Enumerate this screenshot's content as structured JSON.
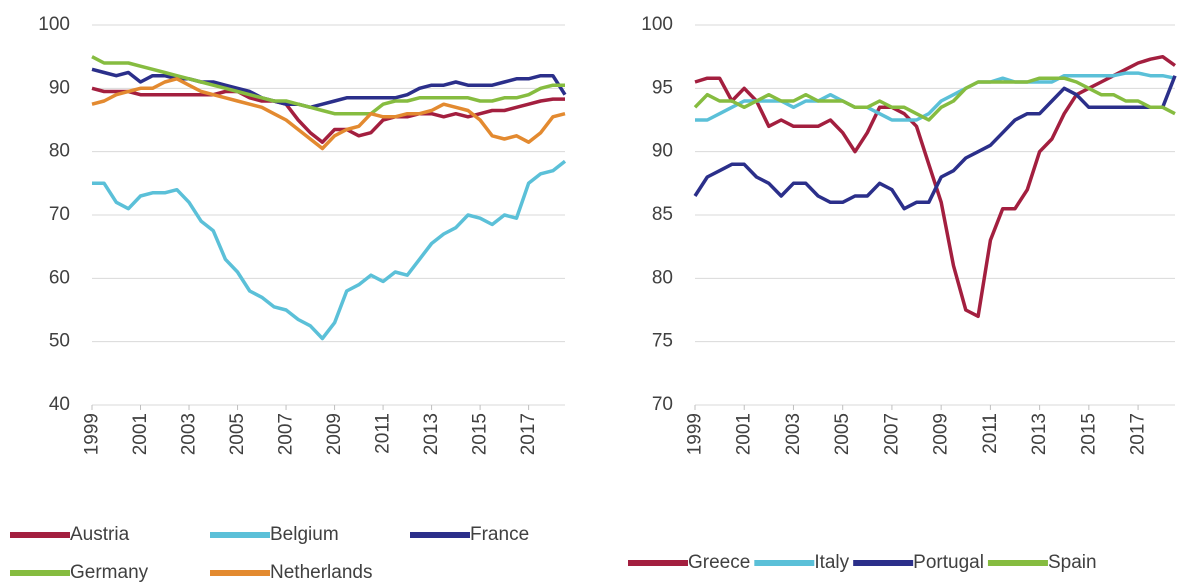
{
  "chart_data": [
    {
      "type": "line",
      "x": [
        1999,
        1999.5,
        2000,
        2000.5,
        2001,
        2001.5,
        2002,
        2002.5,
        2003,
        2003.5,
        2004,
        2004.5,
        2005,
        2005.5,
        2006,
        2006.5,
        2007,
        2007.5,
        2008,
        2008.5,
        2009,
        2009.5,
        2010,
        2010.5,
        2011,
        2011.5,
        2012,
        2012.5,
        2013,
        2013.5,
        2014,
        2014.5,
        2015,
        2015.5,
        2016,
        2016.5,
        2017,
        2017.5,
        2018,
        2018.5
      ],
      "xlim": [
        1999,
        2018.5
      ],
      "xticks": [
        1999,
        2001,
        2003,
        2005,
        2007,
        2009,
        2011,
        2013,
        2015,
        2017
      ],
      "ylim": [
        40,
        100
      ],
      "yticks": [
        40,
        50,
        60,
        70,
        80,
        90,
        100
      ],
      "grid": true,
      "series": [
        {
          "name": "Austria",
          "color": "#a31f3f",
          "values": [
            90,
            89.5,
            89.5,
            89.5,
            89,
            89,
            89,
            89,
            89,
            89,
            89,
            89.5,
            89.5,
            88.5,
            88,
            88,
            87.5,
            85,
            83,
            81.5,
            83.5,
            83.5,
            82.5,
            83,
            85,
            85.5,
            85.5,
            86,
            86,
            85.5,
            86,
            85.5,
            86,
            86.5,
            86.5,
            87,
            87.5,
            88,
            88.3,
            88.3
          ]
        },
        {
          "name": "Belgium",
          "color": "#5bc0d8",
          "values": [
            75,
            75,
            72,
            71,
            73,
            73.5,
            73.5,
            74,
            72,
            69,
            67.5,
            63,
            61,
            58,
            57,
            55.5,
            55,
            53.5,
            52.5,
            50.5,
            53,
            58,
            59,
            60.5,
            59.5,
            61,
            60.5,
            63,
            65.5,
            67,
            68,
            70,
            69.5,
            68.5,
            70,
            69.5,
            75,
            76.5,
            77,
            78.5
          ]
        },
        {
          "name": "France",
          "color": "#2b2f8a",
          "values": [
            93,
            92.5,
            92,
            92.5,
            91,
            92,
            92,
            91.5,
            91.5,
            91,
            91,
            90.5,
            90,
            89.5,
            88.5,
            88,
            87.5,
            87.5,
            87,
            87.5,
            88,
            88.5,
            88.5,
            88.5,
            88.5,
            88.5,
            89,
            90,
            90.5,
            90.5,
            91,
            90.5,
            90.5,
            90.5,
            91,
            91.5,
            91.5,
            92,
            92,
            89
          ]
        },
        {
          "name": "Germany",
          "color": "#86bc40",
          "values": [
            95,
            94,
            94,
            94,
            93.5,
            93,
            92.5,
            92,
            91.5,
            91,
            90.5,
            90,
            89.5,
            89,
            88.5,
            88,
            88,
            87.5,
            87,
            86.5,
            86,
            86,
            86,
            86,
            87.5,
            88,
            88,
            88.5,
            88.5,
            88.5,
            88.5,
            88.5,
            88,
            88,
            88.5,
            88.5,
            89,
            90,
            90.5,
            90.5
          ]
        },
        {
          "name": "Netherlands",
          "color": "#e38a30",
          "values": [
            87.5,
            88,
            89,
            89.5,
            90,
            90,
            91,
            91.5,
            90.5,
            89.5,
            89,
            88.5,
            88,
            87.5,
            87,
            86,
            85,
            83.5,
            82,
            80.5,
            82.5,
            83.5,
            84,
            86,
            85.5,
            85.5,
            86,
            86,
            86.5,
            87.5,
            87,
            86.5,
            85,
            82.5,
            82,
            82.5,
            81.5,
            83,
            85.5,
            86
          ]
        }
      ]
    },
    {
      "type": "line",
      "x": [
        1999,
        1999.5,
        2000,
        2000.5,
        2001,
        2001.5,
        2002,
        2002.5,
        2003,
        2003.5,
        2004,
        2004.5,
        2005,
        2005.5,
        2006,
        2006.5,
        2007,
        2007.5,
        2008,
        2008.5,
        2009,
        2009.5,
        2010,
        2010.5,
        2011,
        2011.5,
        2012,
        2012.5,
        2013,
        2013.5,
        2014,
        2014.5,
        2015,
        2015.5,
        2016,
        2016.5,
        2017,
        2017.5,
        2018,
        2018.5
      ],
      "xlim": [
        1999,
        2018.5
      ],
      "xticks": [
        1999,
        2001,
        2003,
        2005,
        2007,
        2009,
        2011,
        2013,
        2015,
        2017
      ],
      "ylim": [
        70,
        100
      ],
      "yticks": [
        70,
        75,
        80,
        85,
        90,
        95,
        100
      ],
      "grid": true,
      "series": [
        {
          "name": "Greece",
          "color": "#a31f3f",
          "values": [
            95.5,
            95.8,
            95.8,
            94,
            95,
            94,
            92,
            92.5,
            92,
            92,
            92,
            92.5,
            91.5,
            90,
            91.5,
            93.5,
            93.5,
            93,
            92,
            89,
            86,
            81,
            77.5,
            77,
            83,
            85.5,
            85.5,
            87,
            90,
            91,
            93,
            94.5,
            95,
            95.5,
            96,
            96.5,
            97,
            97.3,
            97.5,
            96.8
          ]
        },
        {
          "name": "Italy",
          "color": "#5bc0d8",
          "values": [
            92.5,
            92.5,
            93,
            93.5,
            94,
            94,
            94,
            94,
            93.5,
            94,
            94,
            94.5,
            94,
            93.5,
            93.5,
            93,
            92.5,
            92.5,
            92.5,
            93,
            94,
            94.5,
            95,
            95.5,
            95.5,
            95.8,
            95.5,
            95.5,
            95.5,
            95.5,
            96,
            96,
            96,
            96,
            96,
            96.2,
            96.2,
            96,
            96,
            95.8
          ]
        },
        {
          "name": "Portugal",
          "color": "#2b2f8a",
          "values": [
            86.5,
            88,
            88.5,
            89,
            89,
            88,
            87.5,
            86.5,
            87.5,
            87.5,
            86.5,
            86,
            86,
            86.5,
            86.5,
            87.5,
            87,
            85.5,
            86,
            86,
            88,
            88.5,
            89.5,
            90,
            90.5,
            91.5,
            92.5,
            93,
            93,
            94,
            95,
            94.5,
            93.5,
            93.5,
            93.5,
            93.5,
            93.5,
            93.5,
            93.5,
            96
          ]
        },
        {
          "name": "Spain",
          "color": "#86bc40",
          "values": [
            93.5,
            94.5,
            94,
            94,
            93.5,
            94,
            94.5,
            94,
            94,
            94.5,
            94,
            94,
            94,
            93.5,
            93.5,
            94,
            93.5,
            93.5,
            93,
            92.5,
            93.5,
            94,
            95,
            95.5,
            95.5,
            95.5,
            95.5,
            95.5,
            95.8,
            95.8,
            95.8,
            95.5,
            95,
            94.5,
            94.5,
            94,
            94,
            93.5,
            93.5,
            93
          ]
        }
      ]
    }
  ]
}
